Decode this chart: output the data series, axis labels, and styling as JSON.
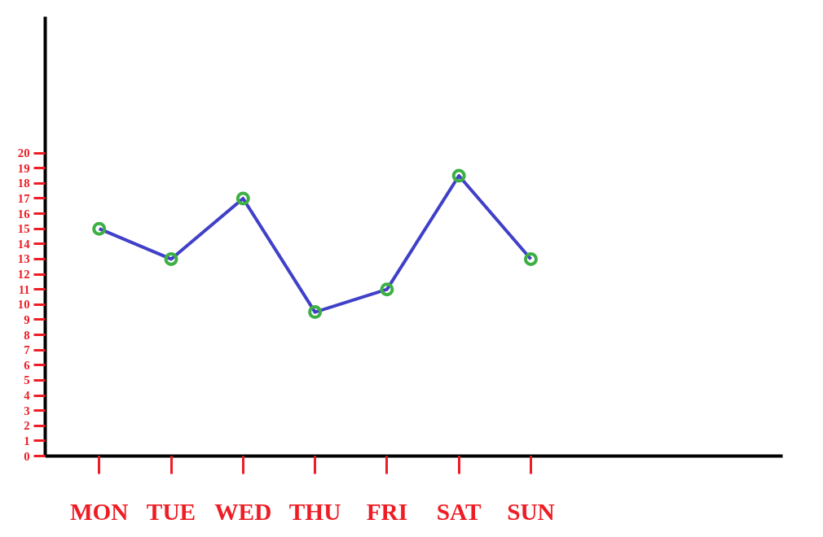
{
  "chart_data": {
    "type": "line",
    "categories": [
      "MON",
      "TUE",
      "WED",
      "THU",
      "FRI",
      "SAT",
      "SUN"
    ],
    "series": [
      {
        "color": "#4040c8",
        "colors": [
          "#3cb043",
          "#3cb043",
          "#3cb043",
          "#3cb043",
          "#3cb043",
          "#3cb043",
          "#3cb043"
        ],
        "values": [
          15,
          13,
          17,
          9.5,
          11,
          18.5,
          13
        ]
      }
    ],
    "ylim": [
      0,
      29
    ],
    "yticks": [
      0,
      1,
      2,
      3,
      4,
      5,
      6,
      7,
      8,
      9,
      10,
      11,
      12,
      13,
      14,
      15,
      16,
      17,
      18,
      19,
      20
    ],
    "grid": false,
    "marker": "circle",
    "line_style": "solid"
  }
}
